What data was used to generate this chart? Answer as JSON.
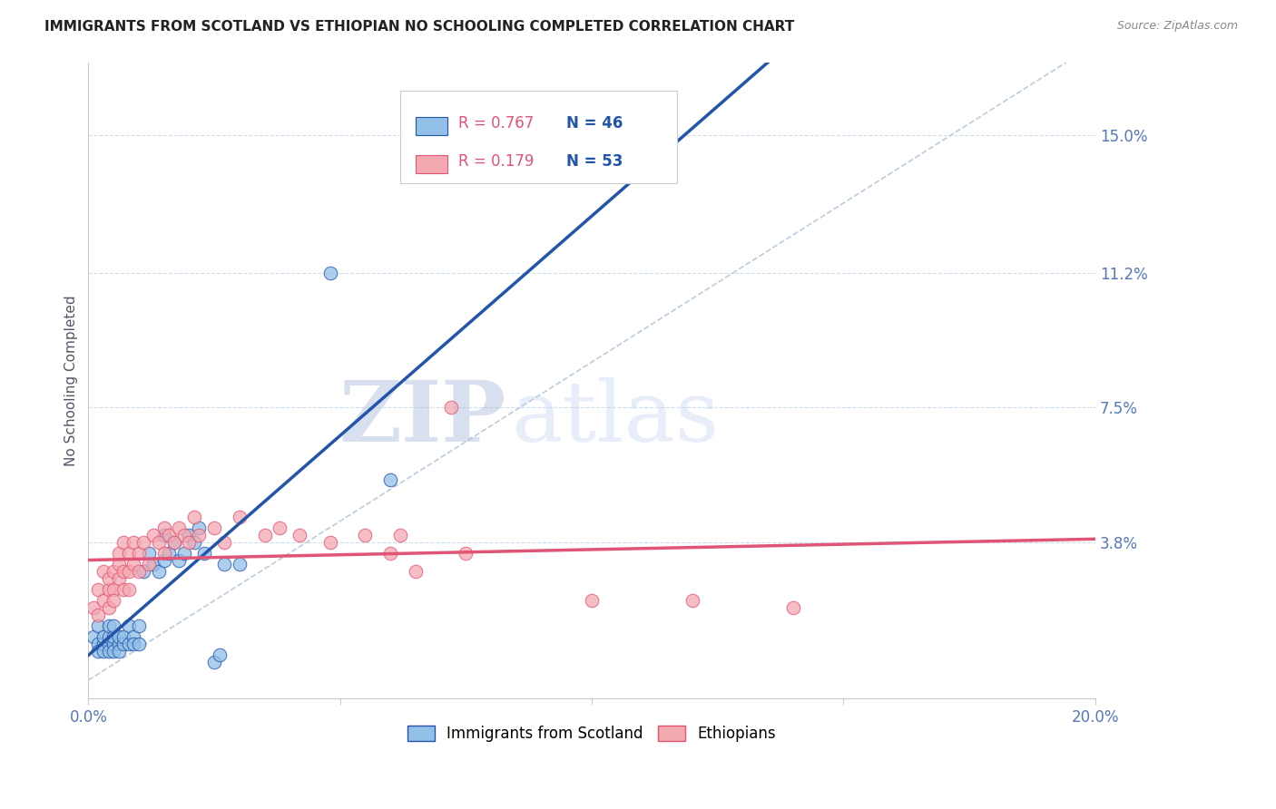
{
  "title": "IMMIGRANTS FROM SCOTLAND VS ETHIOPIAN NO SCHOOLING COMPLETED CORRELATION CHART",
  "source": "Source: ZipAtlas.com",
  "ylabel": "No Schooling Completed",
  "xlim": [
    0.0,
    0.2
  ],
  "ylim": [
    -0.005,
    0.17
  ],
  "yticks": [
    0.038,
    0.075,
    0.112,
    0.15
  ],
  "ytick_labels": [
    "3.8%",
    "7.5%",
    "11.2%",
    "15.0%"
  ],
  "xticks": [
    0.0,
    0.05,
    0.1,
    0.15,
    0.2
  ],
  "xtick_labels": [
    "0.0%",
    "",
    "",
    "",
    "20.0%"
  ],
  "legend_r1": "R = 0.767",
  "legend_n1": "N = 46",
  "legend_r2": "R = 0.179",
  "legend_n2": "N = 53",
  "watermark_zip": "ZIP",
  "watermark_atlas": "atlas",
  "blue_color": "#92C0E8",
  "pink_color": "#F4A8B0",
  "trendline_blue_color": "#2255AA",
  "trendline_pink_color": "#E05575",
  "dashed_line_color": "#BBCCDD",
  "grid_color": "#CCDDEE",
  "axis_label_color": "#5577BB",
  "title_color": "#222222",
  "source_color": "#888888",
  "watermark_color_zip": "#AABBDD",
  "watermark_color_atlas": "#BBCCEE",
  "scatter_blue": [
    [
      0.001,
      0.012
    ],
    [
      0.002,
      0.01
    ],
    [
      0.002,
      0.015
    ],
    [
      0.002,
      0.008
    ],
    [
      0.003,
      0.01
    ],
    [
      0.003,
      0.012
    ],
    [
      0.003,
      0.008
    ],
    [
      0.004,
      0.01
    ],
    [
      0.004,
      0.012
    ],
    [
      0.004,
      0.015
    ],
    [
      0.004,
      0.008
    ],
    [
      0.005,
      0.01
    ],
    [
      0.005,
      0.012
    ],
    [
      0.005,
      0.008
    ],
    [
      0.005,
      0.015
    ],
    [
      0.006,
      0.01
    ],
    [
      0.006,
      0.012
    ],
    [
      0.006,
      0.008
    ],
    [
      0.007,
      0.01
    ],
    [
      0.007,
      0.012
    ],
    [
      0.008,
      0.01
    ],
    [
      0.008,
      0.015
    ],
    [
      0.009,
      0.012
    ],
    [
      0.009,
      0.01
    ],
    [
      0.01,
      0.015
    ],
    [
      0.01,
      0.01
    ],
    [
      0.011,
      0.03
    ],
    [
      0.012,
      0.035
    ],
    [
      0.013,
      0.032
    ],
    [
      0.014,
      0.03
    ],
    [
      0.015,
      0.033
    ],
    [
      0.015,
      0.04
    ],
    [
      0.016,
      0.035
    ],
    [
      0.017,
      0.038
    ],
    [
      0.018,
      0.033
    ],
    [
      0.019,
      0.035
    ],
    [
      0.02,
      0.04
    ],
    [
      0.021,
      0.038
    ],
    [
      0.022,
      0.042
    ],
    [
      0.023,
      0.035
    ],
    [
      0.025,
      0.005
    ],
    [
      0.026,
      0.007
    ],
    [
      0.027,
      0.032
    ],
    [
      0.03,
      0.032
    ],
    [
      0.048,
      0.112
    ],
    [
      0.06,
      0.055
    ]
  ],
  "scatter_pink": [
    [
      0.001,
      0.02
    ],
    [
      0.002,
      0.025
    ],
    [
      0.002,
      0.018
    ],
    [
      0.003,
      0.022
    ],
    [
      0.003,
      0.03
    ],
    [
      0.004,
      0.025
    ],
    [
      0.004,
      0.028
    ],
    [
      0.004,
      0.02
    ],
    [
      0.005,
      0.025
    ],
    [
      0.005,
      0.03
    ],
    [
      0.005,
      0.022
    ],
    [
      0.006,
      0.028
    ],
    [
      0.006,
      0.032
    ],
    [
      0.006,
      0.035
    ],
    [
      0.007,
      0.03
    ],
    [
      0.007,
      0.025
    ],
    [
      0.007,
      0.038
    ],
    [
      0.008,
      0.025
    ],
    [
      0.008,
      0.03
    ],
    [
      0.008,
      0.035
    ],
    [
      0.009,
      0.032
    ],
    [
      0.009,
      0.038
    ],
    [
      0.01,
      0.03
    ],
    [
      0.01,
      0.035
    ],
    [
      0.011,
      0.038
    ],
    [
      0.012,
      0.032
    ],
    [
      0.013,
      0.04
    ],
    [
      0.014,
      0.038
    ],
    [
      0.015,
      0.035
    ],
    [
      0.015,
      0.042
    ],
    [
      0.016,
      0.04
    ],
    [
      0.017,
      0.038
    ],
    [
      0.018,
      0.042
    ],
    [
      0.019,
      0.04
    ],
    [
      0.02,
      0.038
    ],
    [
      0.021,
      0.045
    ],
    [
      0.022,
      0.04
    ],
    [
      0.025,
      0.042
    ],
    [
      0.027,
      0.038
    ],
    [
      0.03,
      0.045
    ],
    [
      0.035,
      0.04
    ],
    [
      0.038,
      0.042
    ],
    [
      0.042,
      0.04
    ],
    [
      0.048,
      0.038
    ],
    [
      0.055,
      0.04
    ],
    [
      0.06,
      0.035
    ],
    [
      0.062,
      0.04
    ],
    [
      0.065,
      0.03
    ],
    [
      0.072,
      0.075
    ],
    [
      0.075,
      0.035
    ],
    [
      0.1,
      0.022
    ],
    [
      0.12,
      0.022
    ],
    [
      0.14,
      0.02
    ]
  ]
}
